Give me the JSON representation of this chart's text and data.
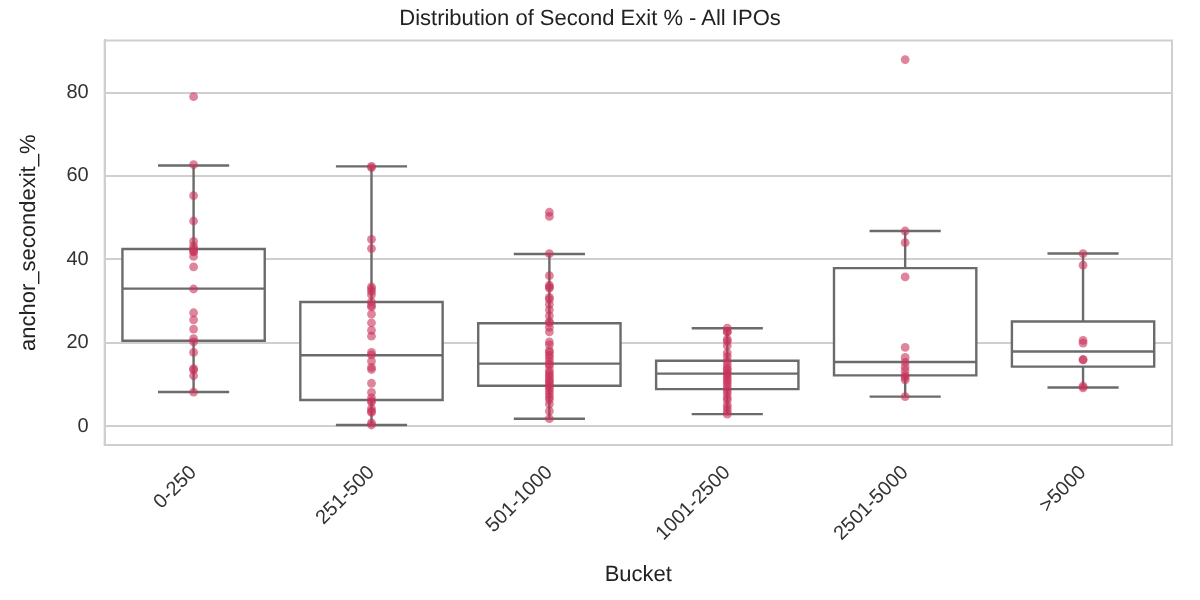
{
  "chart_data": {
    "type": "box",
    "title": "Distribution of Second Exit % - All IPOs",
    "xlabel": "Bucket",
    "ylabel": "anchor_secondexit_%",
    "categories": [
      "0-250",
      "251-500",
      "501-1000",
      "1001-2500",
      "2501-5000",
      ">5000"
    ],
    "boxes": [
      {
        "low": 8.2,
        "q1": 20.5,
        "median": 33,
        "q3": 42.5,
        "high": 62.5
      },
      {
        "low": 0.3,
        "q1": 6.3,
        "median": 17,
        "q3": 29.8,
        "high": 62.3
      },
      {
        "low": 1.8,
        "q1": 9.7,
        "median": 15,
        "q3": 24.7,
        "high": 41.3
      },
      {
        "low": 2.9,
        "q1": 8.9,
        "median": 12.6,
        "q3": 15.7,
        "high": 23.5
      },
      {
        "low": 7.1,
        "q1": 12.2,
        "median": 15.4,
        "q3": 37.9,
        "high": 46.8
      },
      {
        "low": 9.3,
        "q1": 14.3,
        "median": 17.9,
        "q3": 25.1,
        "high": 41.4
      }
    ],
    "series": [
      {
        "type": "scatter",
        "color": "#c8325a",
        "x": [
          "0-250",
          "0-250",
          "0-250",
          "0-250",
          "0-250",
          "0-250",
          "0-250",
          "0-250",
          "0-250",
          "0-250",
          "0-250",
          "0-250",
          "0-250",
          "0-250",
          "0-250",
          "0-250",
          "0-250",
          "0-250",
          "0-250",
          "0-250",
          "0-250",
          "0-250",
          "251-500",
          "251-500",
          "251-500",
          "251-500",
          "251-500",
          "251-500",
          "251-500",
          "251-500",
          "251-500",
          "251-500",
          "251-500",
          "251-500",
          "251-500",
          "251-500",
          "251-500",
          "251-500",
          "251-500",
          "251-500",
          "251-500",
          "251-500",
          "251-500",
          "251-500",
          "251-500",
          "251-500",
          "251-500",
          "251-500",
          "251-500",
          "251-500",
          "251-500",
          "251-500",
          "501-1000",
          "501-1000",
          "501-1000",
          "501-1000",
          "501-1000",
          "501-1000",
          "501-1000",
          "501-1000",
          "501-1000",
          "501-1000",
          "501-1000",
          "501-1000",
          "501-1000",
          "501-1000",
          "501-1000",
          "501-1000",
          "501-1000",
          "501-1000",
          "501-1000",
          "501-1000",
          "501-1000",
          "501-1000",
          "501-1000",
          "501-1000",
          "501-1000",
          "501-1000",
          "501-1000",
          "501-1000",
          "501-1000",
          "501-1000",
          "501-1000",
          "501-1000",
          "501-1000",
          "501-1000",
          "501-1000",
          "501-1000",
          "501-1000",
          "501-1000",
          "501-1000",
          "501-1000",
          "501-1000",
          "1001-2500",
          "1001-2500",
          "1001-2500",
          "1001-2500",
          "1001-2500",
          "1001-2500",
          "1001-2500",
          "1001-2500",
          "1001-2500",
          "1001-2500",
          "1001-2500",
          "1001-2500",
          "1001-2500",
          "1001-2500",
          "1001-2500",
          "1001-2500",
          "1001-2500",
          "1001-2500",
          "1001-2500",
          "1001-2500",
          "1001-2500",
          "1001-2500",
          "1001-2500",
          "1001-2500",
          "1001-2500",
          "1001-2500",
          "1001-2500",
          "2501-5000",
          "2501-5000",
          "2501-5000",
          "2501-5000",
          "2501-5000",
          "2501-5000",
          "2501-5000",
          "2501-5000",
          "2501-5000",
          "2501-5000",
          "2501-5000",
          "2501-5000",
          "2501-5000",
          ">5000",
          ">5000",
          ">5000",
          ">5000",
          ">5000",
          ">5000",
          ">5000",
          ">5000"
        ],
        "values": [
          79,
          62.7,
          55.3,
          49.2,
          44.3,
          43.2,
          42.5,
          42,
          41.8,
          40.7,
          38.2,
          32.9,
          27.2,
          25.5,
          23.3,
          21,
          20.2,
          17.7,
          13.8,
          13.5,
          12.1,
          8.2,
          62.3,
          62,
          44.8,
          42.6,
          33.4,
          32.9,
          32.3,
          31.5,
          29.8,
          29,
          28.6,
          26.9,
          24.8,
          23,
          21.6,
          17.7,
          17.1,
          15.6,
          14.1,
          13.6,
          10.3,
          8.1,
          6.8,
          6.1,
          5.8,
          4.2,
          3.6,
          3.3,
          0.8,
          0.3,
          51.3,
          50.3,
          41.4,
          36.1,
          33.8,
          33.4,
          33.1,
          30.9,
          30.4,
          29.2,
          27.9,
          26.5,
          25.1,
          24.8,
          23.7,
          22.6,
          20.2,
          19.5,
          18.1,
          17.7,
          17,
          16.4,
          15.6,
          14.9,
          14.5,
          13.4,
          12.8,
          12.3,
          11.7,
          11.1,
          10.7,
          10.2,
          9.6,
          9.1,
          8.4,
          7.7,
          7,
          6.4,
          5.3,
          3.6,
          1.8,
          23.5,
          22.6,
          22.6,
          20.8,
          20.4,
          19.3,
          17.6,
          16.7,
          15.6,
          14.7,
          13.9,
          13.5,
          12.8,
          12.5,
          11.8,
          11.3,
          10.7,
          10.1,
          9.4,
          8.6,
          7.9,
          6.9,
          6.3,
          5.1,
          4.4,
          3.6,
          2.9,
          87.9,
          46.8,
          44,
          35.8,
          18.9,
          16.5,
          15.3,
          14.2,
          13.3,
          12.2,
          11.7,
          11.1,
          7.1,
          41.4,
          38.6,
          20.6,
          19.9,
          16,
          15.9,
          9.6,
          9.2
        ]
      }
    ],
    "ylim": [
      -4.5,
      92.5
    ],
    "yticks": [
      0,
      20,
      40,
      60,
      80
    ],
    "grid": "y",
    "legend": false
  }
}
